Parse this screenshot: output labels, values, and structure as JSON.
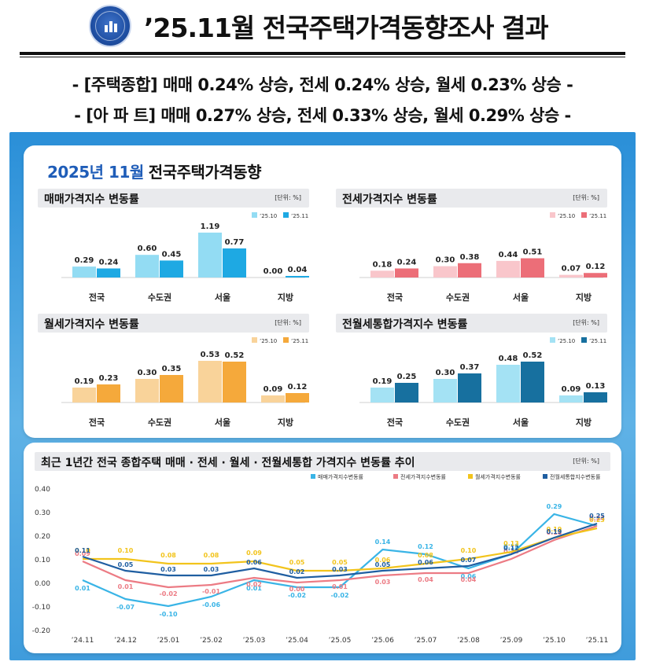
{
  "header": {
    "title": "’25.11월 전국주택가격동향조사 결과",
    "line1": "- [주택종합] 매매 0.24% 상승, 전세 0.24% 상승, 월세 0.23% 상승 -",
    "line2": "- [아 파 트] 매매 0.27% 상승, 전세 0.33% 상승, 월세 0.29% 상승 -"
  },
  "panel": {
    "title_blue": "2025년 11월",
    "title_black": "전국주택가격동향"
  },
  "colors": {
    "sale_light": "#93dcf3",
    "sale_dark": "#1ea9e3",
    "jeonse_light": "#f9c6cb",
    "jeonse_dark": "#ec6e78",
    "monthly_light": "#f9d39a",
    "monthly_dark": "#f5a93b",
    "combined_light": "#a4e2f4",
    "combined_dark": "#17709f",
    "line_sale": "#39b4e6",
    "line_jeonse": "#ec7b84",
    "line_monthly": "#f2c41c",
    "line_combined": "#1f5ea1"
  },
  "bottom": {
    "title": "최근 1년간 전국 종합주택 매매 · 전세 · 월세 · 전월세통합 가격지수 변동률 추이",
    "unit": "[단위: %]"
  },
  "chart_data": [
    {
      "type": "bar",
      "title": "매매가격지수 변동률",
      "unit": "[단위: %]",
      "categories": [
        "전국",
        "수도권",
        "서울",
        "지방"
      ],
      "series": [
        {
          "name": "’25.10",
          "values": [
            0.29,
            0.6,
            1.19,
            0.0
          ],
          "labels": [
            "0.29",
            "0.60",
            "1.19",
            "0.00"
          ],
          "color_key": "sale_light"
        },
        {
          "name": "’25.11",
          "values": [
            0.24,
            0.45,
            0.77,
            0.04
          ],
          "labels": [
            "0.24",
            "0.45",
            "0.77",
            "0.04"
          ],
          "color_key": "sale_dark"
        }
      ],
      "ylim": [
        0,
        1.25
      ]
    },
    {
      "type": "bar",
      "title": "전세가격지수 변동률",
      "unit": "[단위: %]",
      "categories": [
        "전국",
        "수도권",
        "서울",
        "지방"
      ],
      "series": [
        {
          "name": "’25.10",
          "values": [
            0.18,
            0.3,
            0.44,
            0.07
          ],
          "labels": [
            "0.18",
            "0.30",
            "0.44",
            "0.07"
          ],
          "color_key": "jeonse_light"
        },
        {
          "name": "’25.11",
          "values": [
            0.24,
            0.38,
            0.51,
            0.12
          ],
          "labels": [
            "0.24",
            "0.38",
            "0.51",
            "0.12"
          ],
          "color_key": "jeonse_dark"
        }
      ],
      "ylim": [
        0,
        1.25
      ]
    },
    {
      "type": "bar",
      "title": "월세가격지수 변동률",
      "unit": "[단위: %]",
      "categories": [
        "전국",
        "수도권",
        "서울",
        "지방"
      ],
      "series": [
        {
          "name": "’25.10",
          "values": [
            0.19,
            0.3,
            0.53,
            0.09
          ],
          "labels": [
            "0.19",
            "0.30",
            "0.53",
            "0.09"
          ],
          "color_key": "monthly_light"
        },
        {
          "name": "’25.11",
          "values": [
            0.23,
            0.35,
            0.52,
            0.12
          ],
          "labels": [
            "0.23",
            "0.35",
            "0.52",
            "0.12"
          ],
          "color_key": "monthly_dark"
        }
      ],
      "ylim": [
        0,
        0.6
      ]
    },
    {
      "type": "bar",
      "title": "전월세통합가격지수 변동률",
      "unit": "[단위: %]",
      "categories": [
        "전국",
        "수도권",
        "서울",
        "지방"
      ],
      "series": [
        {
          "name": "’25.10",
          "values": [
            0.19,
            0.3,
            0.48,
            0.09
          ],
          "labels": [
            "0.19",
            "0.30",
            "0.48",
            "0.09"
          ],
          "color_key": "combined_light"
        },
        {
          "name": "’25.11",
          "values": [
            0.25,
            0.37,
            0.52,
            0.13
          ],
          "labels": [
            "0.25",
            "0.37",
            "0.52",
            "0.13"
          ],
          "color_key": "combined_dark"
        }
      ],
      "ylim": [
        0,
        0.6
      ]
    },
    {
      "type": "line",
      "title": "최근 1년간 전국 종합주택 매매 · 전세 · 월세 · 전월세통합 가격지수 변동률 추이",
      "x": [
        "’24.11",
        "’24.12",
        "’25.01",
        "’25.02",
        "’25.03",
        "’25.04",
        "’25.05",
        "’25.06",
        "’25.07",
        "’25.08",
        "’25.09",
        "’25.10",
        "’25.11"
      ],
      "ylim": [
        -0.2,
        0.4
      ],
      "yticks": [
        "-0.20",
        "-0.10",
        "0.00",
        "0.10",
        "0.20",
        "0.30",
        "0.40"
      ],
      "grid": false,
      "legend": "top-right",
      "series": [
        {
          "name": "매매가격지수변동률",
          "color_key": "line_sale",
          "values": [
            0.01,
            -0.07,
            -0.1,
            -0.06,
            0.01,
            -0.02,
            -0.02,
            0.14,
            0.12,
            0.06,
            0.12,
            0.29,
            0.24
          ],
          "labels": [
            "0.01",
            "-0.07",
            "-0.10",
            "-0.06",
            "0.01",
            "-0.02",
            "-0.02",
            "0.14",
            "0.12",
            "0.06",
            "0.12",
            "0.29",
            "0.24"
          ]
        },
        {
          "name": "전세가격지수변동률",
          "color_key": "line_jeonse",
          "values": [
            0.09,
            0.01,
            -0.02,
            -0.01,
            0.02,
            0.0,
            0.01,
            0.03,
            0.04,
            0.04,
            0.1,
            0.18,
            0.24
          ],
          "labels": [
            "0.09",
            "0.01",
            "-0.02",
            "-0.01",
            "0.02",
            "0.00",
            "0.01",
            "0.03",
            "0.04",
            "0.04",
            "0.10",
            "0.18",
            "0.24"
          ]
        },
        {
          "name": "월세가격지수변동률",
          "color_key": "line_monthly",
          "values": [
            0.1,
            0.1,
            0.08,
            0.08,
            0.09,
            0.05,
            0.05,
            0.06,
            0.08,
            0.1,
            0.13,
            0.19,
            0.23
          ],
          "labels": [
            "0.10",
            "0.10",
            "0.08",
            "0.08",
            "0.09",
            "0.05",
            "0.05",
            "0.06",
            "0.08",
            "0.10",
            "0.13",
            "0.19",
            "0.23"
          ]
        },
        {
          "name": "전월세통합지수변동률",
          "color_key": "line_combined",
          "values": [
            0.11,
            0.05,
            0.03,
            0.03,
            0.06,
            0.02,
            0.03,
            0.05,
            0.06,
            0.07,
            0.12,
            0.19,
            0.25
          ],
          "labels": [
            "0.11",
            "0.05",
            "0.03",
            "0.03",
            "0.06",
            "0.02",
            "0.03",
            "0.05",
            "0.06",
            "0.07",
            "0.12",
            "0.19",
            "0.25"
          ]
        }
      ]
    }
  ]
}
